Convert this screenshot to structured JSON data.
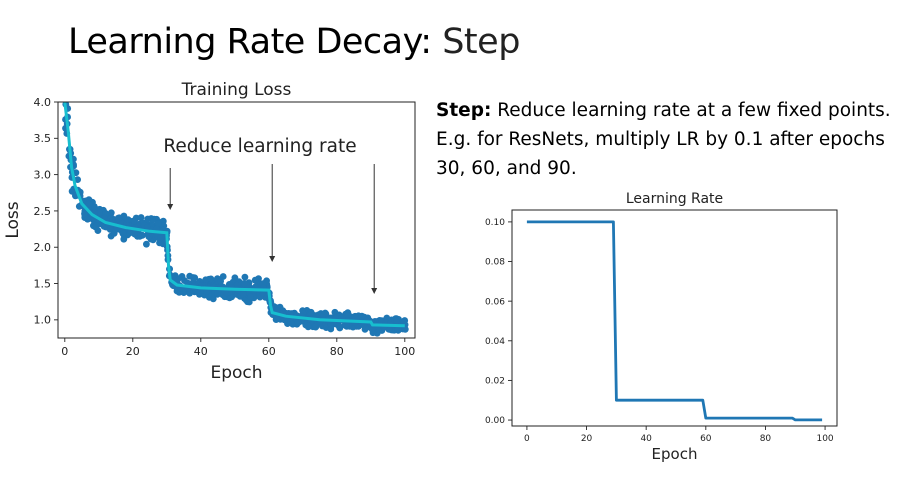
{
  "slide": {
    "title_main": "Learning Rate Decay",
    "title_sep": ": ",
    "title_sub": "Step",
    "desc_bold": "Step:",
    "desc_text": " Reduce learning rate at a few fixed points. E.g. for ResNets, multiply LR by 0.1 after epochs 30, 60, and 90."
  },
  "chart_data": [
    {
      "type": "scatter",
      "title": "Training Loss",
      "xlabel": "Epoch",
      "ylabel": "Loss",
      "xlim": [
        -2,
        103
      ],
      "ylim": [
        0.75,
        4.0
      ],
      "xticks": [
        0,
        20,
        40,
        60,
        80,
        100
      ],
      "yticks": [
        1.0,
        1.5,
        2.0,
        2.5,
        3.0,
        3.5,
        4.0
      ],
      "ytick_labels": [
        "1.0",
        "1.5",
        "2.0",
        "2.5",
        "3.0",
        "3.5",
        "4.0"
      ],
      "grid": false,
      "raw_color": "#1f77b4",
      "smooth_color": "#17becf",
      "smoothed_loss": [
        {
          "x": 0,
          "y": 4.0
        },
        {
          "x": 1,
          "y": 3.6
        },
        {
          "x": 2,
          "y": 3.1
        },
        {
          "x": 3,
          "y": 2.85
        },
        {
          "x": 5,
          "y": 2.6
        },
        {
          "x": 8,
          "y": 2.45
        },
        {
          "x": 12,
          "y": 2.34
        },
        {
          "x": 18,
          "y": 2.27
        },
        {
          "x": 25,
          "y": 2.22
        },
        {
          "x": 30,
          "y": 2.2
        },
        {
          "x": 30.5,
          "y": 1.75
        },
        {
          "x": 31,
          "y": 1.55
        },
        {
          "x": 33,
          "y": 1.48
        },
        {
          "x": 40,
          "y": 1.44
        },
        {
          "x": 50,
          "y": 1.42
        },
        {
          "x": 60,
          "y": 1.41
        },
        {
          "x": 60.5,
          "y": 1.2
        },
        {
          "x": 61,
          "y": 1.1
        },
        {
          "x": 65,
          "y": 1.05
        },
        {
          "x": 75,
          "y": 1.0
        },
        {
          "x": 90,
          "y": 0.97
        },
        {
          "x": 90.5,
          "y": 0.93
        },
        {
          "x": 100,
          "y": 0.92
        }
      ],
      "annotation": {
        "text": "Reduce learning rate",
        "arrow_epochs": [
          31,
          61,
          91
        ]
      }
    },
    {
      "type": "line",
      "title": "Learning Rate",
      "xlabel": "Epoch",
      "ylabel": "",
      "xlim": [
        -5,
        104
      ],
      "ylim": [
        -0.003,
        0.106
      ],
      "xticks": [
        0,
        20,
        40,
        60,
        80,
        100
      ],
      "yticks": [
        0.0,
        0.02,
        0.04,
        0.06,
        0.08,
        0.1
      ],
      "ytick_labels": [
        "0.00",
        "0.02",
        "0.04",
        "0.06",
        "0.08",
        "0.10"
      ],
      "grid": false,
      "color": "#1f77b4",
      "x": [
        0,
        29,
        30,
        59,
        60,
        89,
        90,
        99
      ],
      "y": [
        0.1,
        0.1,
        0.01,
        0.01,
        0.001,
        0.001,
        0.0001,
        0.0001
      ]
    }
  ]
}
